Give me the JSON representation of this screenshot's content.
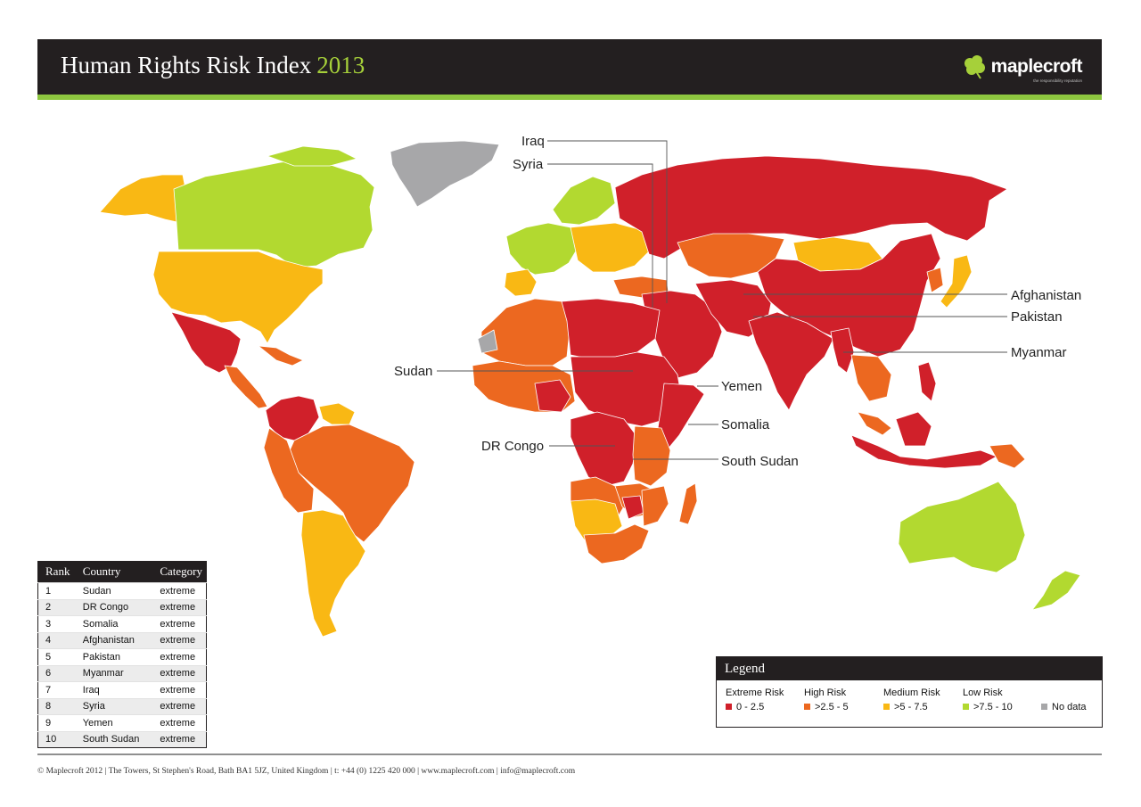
{
  "header": {
    "title": "Human Rights Risk Index",
    "year": "2013",
    "logo_text": "maplecroft",
    "logo_tagline": "the responsibility reputation"
  },
  "colors": {
    "extreme": "#d0202a",
    "high": "#ec6820",
    "medium": "#f9b814",
    "low": "#b2d930",
    "no_data": "#a7a7a9",
    "header_bg": "#231f20",
    "accent": "#8dc63f",
    "year": "#a6d03a"
  },
  "map": {
    "callouts": [
      "Iraq",
      "Syria",
      "Afghanistan",
      "Pakistan",
      "Myanmar",
      "Sudan",
      "Yemen",
      "Somalia",
      "DR Congo",
      "South Sudan"
    ]
  },
  "ranking": {
    "headers": [
      "Rank",
      "Country",
      "Category"
    ],
    "rows": [
      {
        "rank": "1",
        "country": "Sudan",
        "category": "extreme"
      },
      {
        "rank": "2",
        "country": "DR Congo",
        "category": "extreme"
      },
      {
        "rank": "3",
        "country": "Somalia",
        "category": "extreme"
      },
      {
        "rank": "4",
        "country": "Afghanistan",
        "category": "extreme"
      },
      {
        "rank": "5",
        "country": "Pakistan",
        "category": "extreme"
      },
      {
        "rank": "6",
        "country": "Myanmar",
        "category": "extreme"
      },
      {
        "rank": "7",
        "country": "Iraq",
        "category": "extreme"
      },
      {
        "rank": "8",
        "country": "Syria",
        "category": "extreme"
      },
      {
        "rank": "9",
        "country": "Yemen",
        "category": "extreme"
      },
      {
        "rank": "10",
        "country": "South Sudan",
        "category": "extreme"
      }
    ]
  },
  "legend": {
    "title": "Legend",
    "items": [
      {
        "label": "Extreme Risk",
        "range": "0 - 2.5"
      },
      {
        "label": "High Risk",
        "range": ">2.5 - 5"
      },
      {
        "label": "Medium Risk",
        "range": ">5 - 7.5"
      },
      {
        "label": "Low Risk",
        "range": ">7.5 - 10"
      },
      {
        "label": "",
        "range": "No data"
      }
    ]
  },
  "footer": {
    "text": "© Maplecroft 2012 | The Towers, St Stephen's Road, Bath BA1 5JZ, United Kingdom | t: +44 (0) 1225 420 000 | www.maplecroft.com | info@maplecroft.com"
  }
}
